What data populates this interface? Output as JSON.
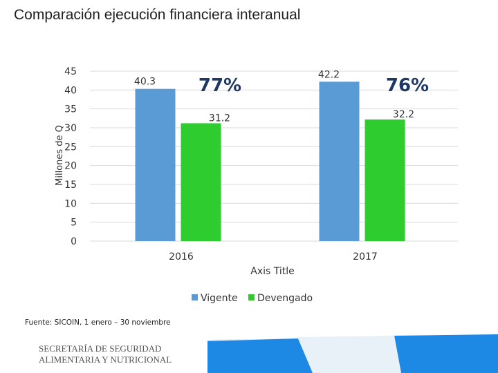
{
  "title": "Comparación ejecución financiera interanual",
  "source_note": "Fuente: SICOIN, 1 enero – 30 noviembre",
  "footer": {
    "org_line1": "SECRETARÍA DE SEGURIDAD",
    "org_line2": "ALIMENTARIA Y NUTRICIONAL"
  },
  "colors": {
    "vigente": "#5b9bd5",
    "devengado": "#2ecc2e",
    "percent_text": "#1f3864",
    "band_blue": "#1e88e5"
  },
  "chart_data": {
    "type": "bar",
    "title": "",
    "xlabel": "Axis Title",
    "ylabel": "Millones de Q",
    "ylim": [
      0,
      45
    ],
    "yticks": [
      0,
      5,
      10,
      15,
      20,
      25,
      30,
      35,
      40,
      45
    ],
    "categories": [
      "2016",
      "2017"
    ],
    "series": [
      {
        "name": "Vigente",
        "values": [
          40.3,
          42.2
        ],
        "labels": [
          "40.3",
          "42.2"
        ]
      },
      {
        "name": "Devengado",
        "values": [
          31.2,
          32.2
        ],
        "labels": [
          "31.2",
          "32.2"
        ]
      }
    ],
    "annotations": [
      "77%",
      "76%"
    ],
    "legend_position": "bottom"
  }
}
